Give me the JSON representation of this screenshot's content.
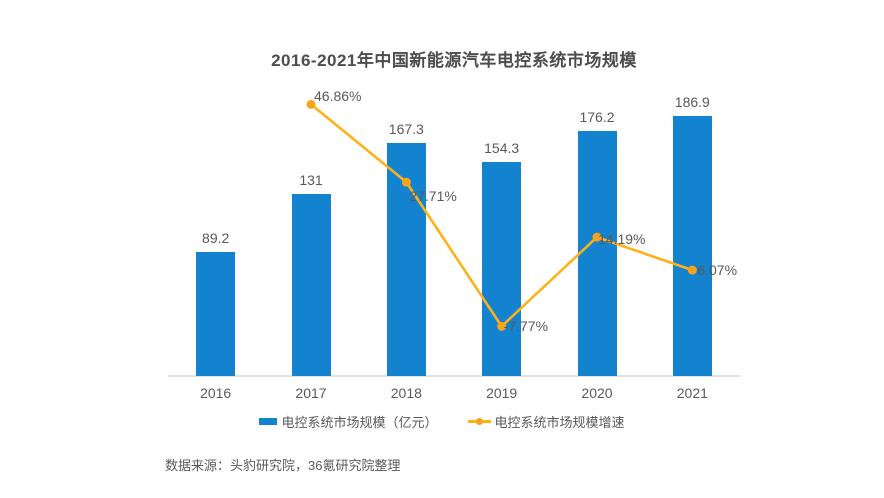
{
  "title": "2016-2021年中国新能源汽车电控系统市场规模",
  "source_note": "数据来源：头豹研究院，36氪研究院整理",
  "colors": {
    "bar": "#1483cf",
    "line": "#ffb117",
    "dot": "#f7a41c",
    "title_text": "#4d4d4d",
    "label_text": "#595959",
    "axis_line": "#e2e2e2"
  },
  "legend": [
    {
      "label": "电控系统市场规模（亿元）",
      "type": "bar"
    },
    {
      "label": "电控系统市场规模增速",
      "type": "line"
    }
  ],
  "chart_data": {
    "type": "bar",
    "combo": "bar+line",
    "title": "2016-2021年中国新能源汽车电控系统市场规模",
    "categories": [
      "2016",
      "2017",
      "2018",
      "2019",
      "2020",
      "2021"
    ],
    "series": [
      {
        "name": "电控系统市场规模（亿元）",
        "type": "bar",
        "axis": "left",
        "values": [
          89.2,
          131,
          167.3,
          154.3,
          176.2,
          186.9
        ],
        "labels": [
          "89.2",
          "131",
          "167.3",
          "154.3",
          "176.2",
          "186.9"
        ]
      },
      {
        "name": "电控系统市场规模增速",
        "type": "line",
        "axis": "right",
        "values": [
          null,
          46.86,
          27.71,
          -7.77,
          14.19,
          6.07
        ],
        "labels": [
          null,
          "46.86%",
          "27.71%",
          "-7.77%",
          "14.19%",
          "6.07%"
        ]
      }
    ],
    "xlabel": "",
    "ylabel_left": "亿元",
    "ylabel_right": "%",
    "left_axis_range": [
      0,
      200
    ],
    "right_axis_range": [
      -20,
      60
    ],
    "axes_visible": false,
    "grid": false,
    "legend_position": "bottom"
  }
}
